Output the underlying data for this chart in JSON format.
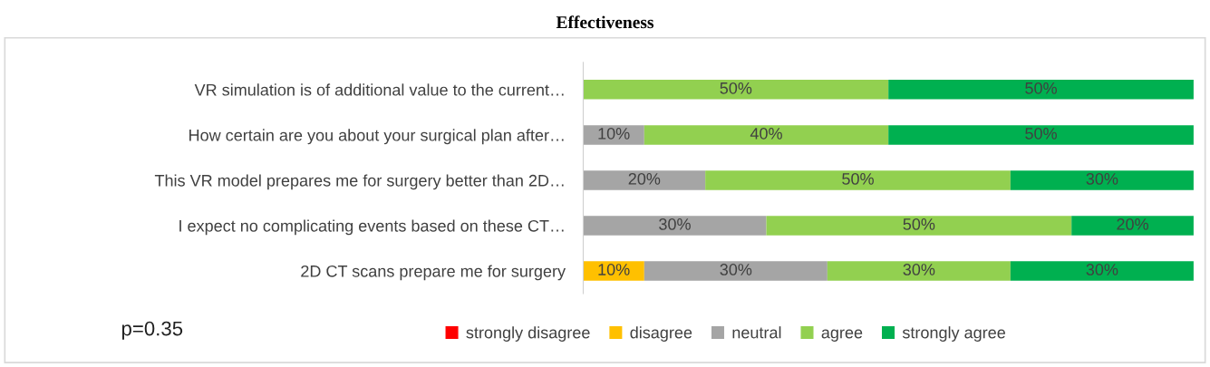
{
  "chart_data": {
    "type": "bar",
    "orientation": "horizontal",
    "stacked": true,
    "title": "Effectiveness",
    "categories": [
      "VR simulation is of additional value to the current…",
      "How certain are you about your surgical plan after…",
      "This VR model prepares me for surgery better than 2D…",
      "I expect no complicating events based on these CT…",
      "2D CT scans prepare me for surgery"
    ],
    "series": [
      {
        "name": "strongly disagree",
        "color": "#ff0000",
        "values": [
          0,
          0,
          0,
          0,
          0
        ],
        "value_labels": [
          null,
          null,
          null,
          null,
          null
        ]
      },
      {
        "name": "disagree",
        "color": "#ffc000",
        "values": [
          0,
          0,
          0,
          0,
          10
        ],
        "value_labels": [
          null,
          null,
          null,
          null,
          "10%"
        ]
      },
      {
        "name": "neutral",
        "color": "#a5a5a5",
        "values": [
          0,
          10,
          20,
          30,
          30
        ],
        "value_labels": [
          null,
          "10%",
          "20%",
          "30%",
          "30%"
        ]
      },
      {
        "name": "agree",
        "color": "#92d050",
        "values": [
          50,
          40,
          50,
          50,
          30
        ],
        "value_labels": [
          "50%",
          "40%",
          "50%",
          "50%",
          "30%"
        ]
      },
      {
        "name": "strongly agree",
        "color": "#00b050",
        "values": [
          50,
          50,
          30,
          20,
          30
        ],
        "value_labels": [
          "50%",
          "50%",
          "30%",
          "20%",
          "30%"
        ]
      }
    ],
    "legend": "bottom",
    "grid": false,
    "annotations": [
      "p=0.35"
    ]
  }
}
